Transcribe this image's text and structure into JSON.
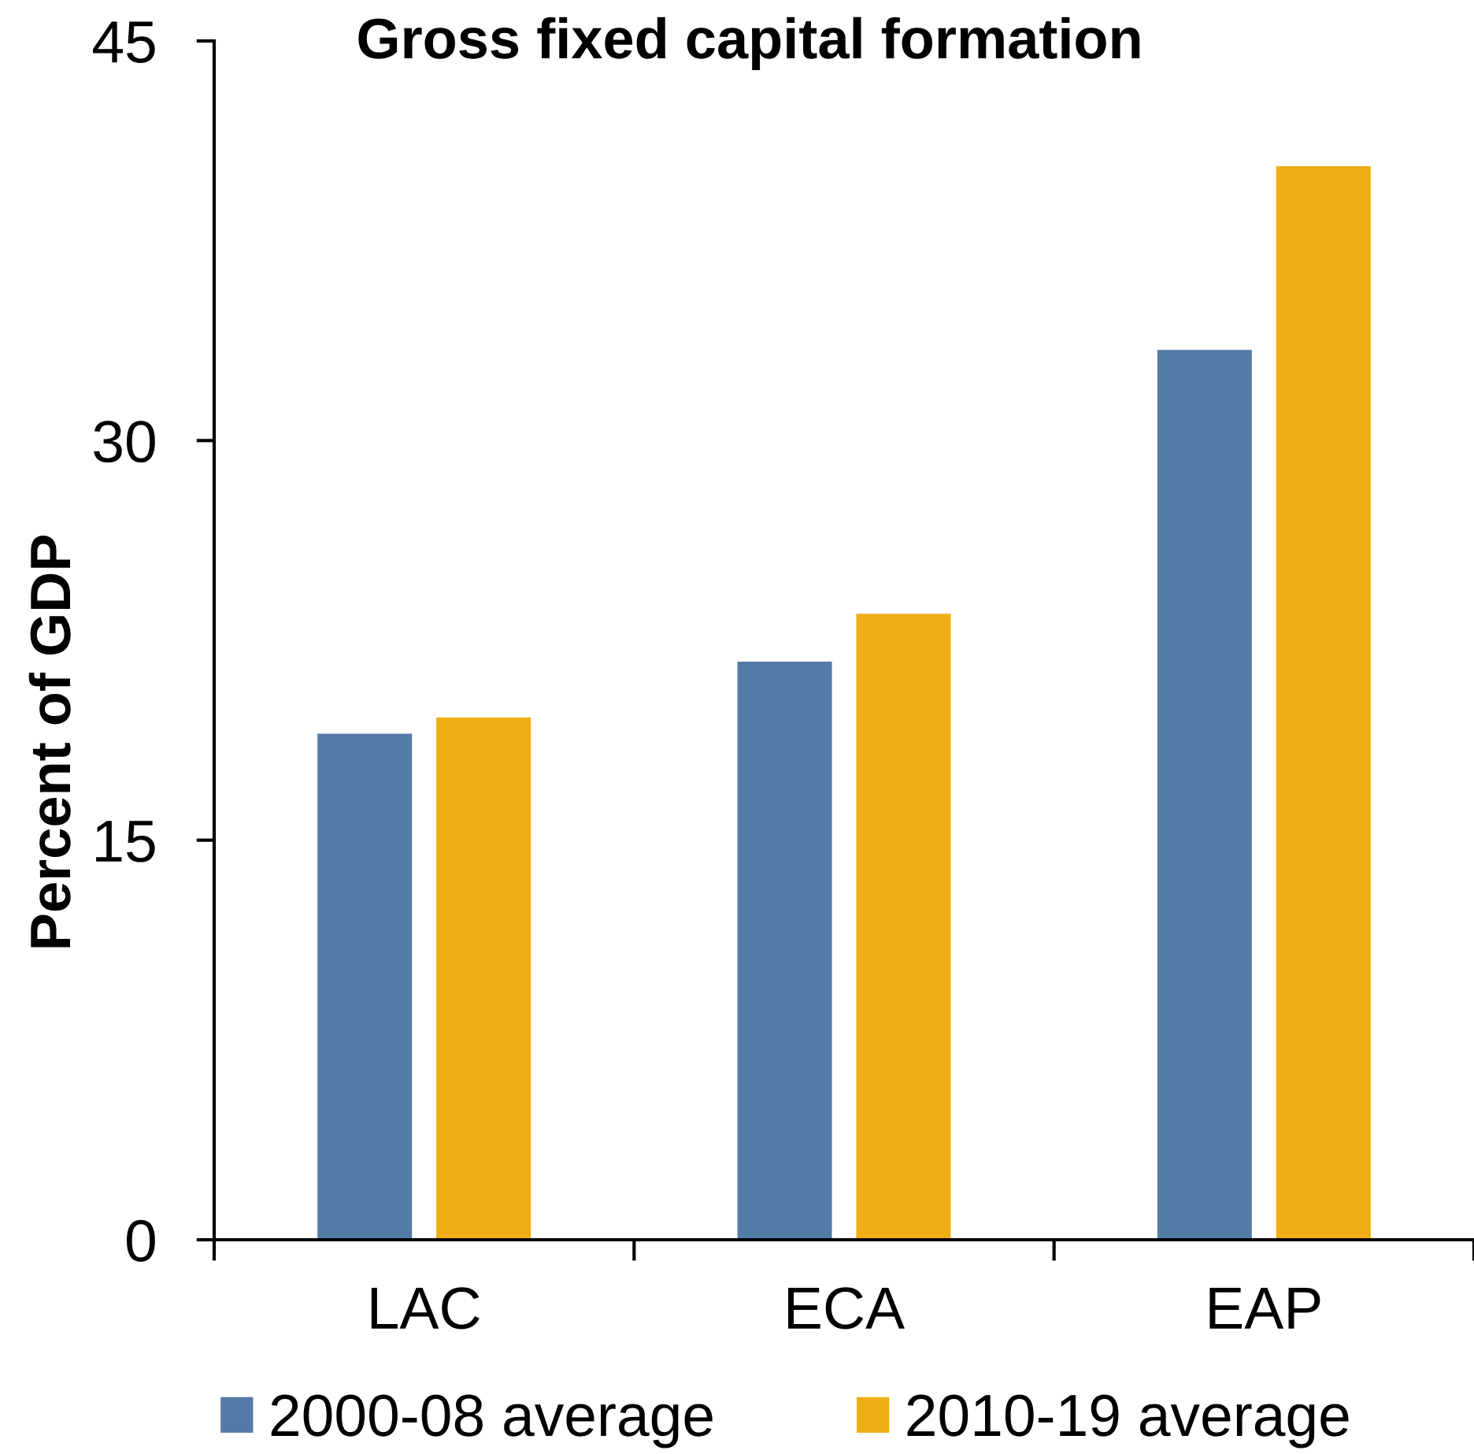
{
  "chart_data": {
    "type": "bar",
    "title": "Gross fixed capital formation",
    "ylabel": "Percent of GDP",
    "categories": [
      "LAC",
      "ECA",
      "EAP"
    ],
    "series": [
      {
        "name": "2000-08 average",
        "color": "#537ba7",
        "values": [
          19.0,
          21.7,
          33.4
        ]
      },
      {
        "name": "2010-19 average",
        "color": "#efae15",
        "values": [
          19.6,
          23.5,
          40.3
        ]
      }
    ],
    "ylim": [
      0,
      45
    ],
    "yticks": [
      0,
      15,
      30,
      45
    ],
    "legend": "bottom"
  }
}
